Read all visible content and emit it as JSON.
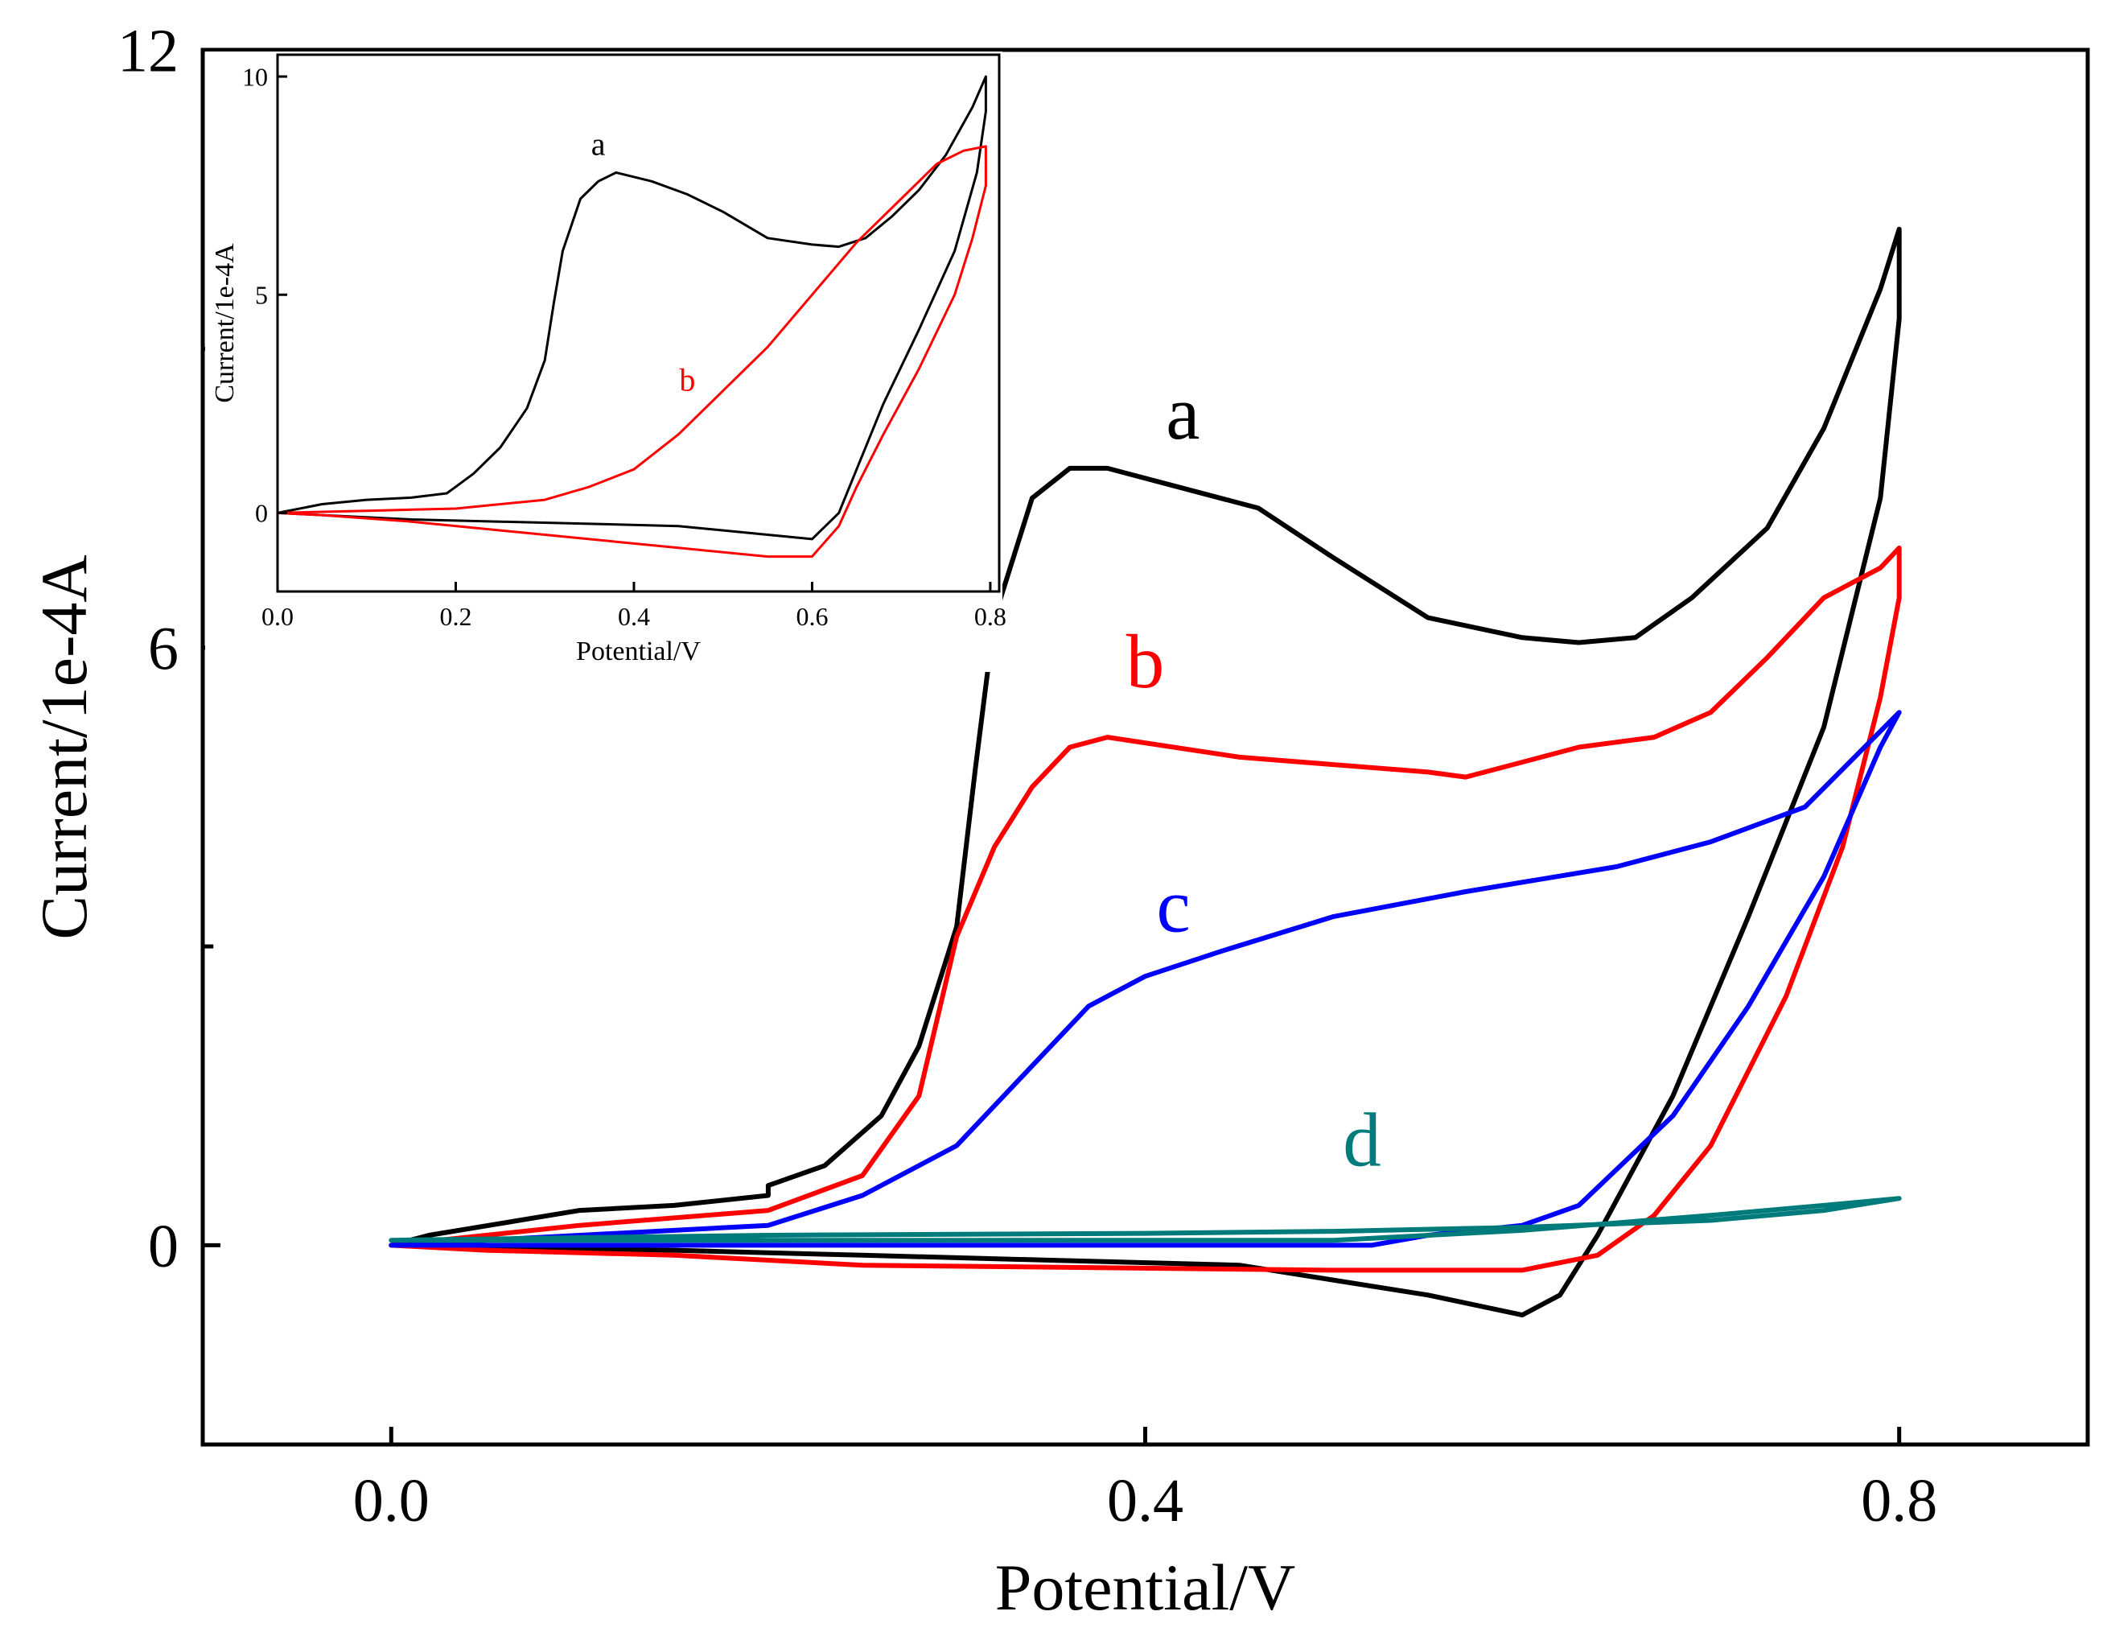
{
  "chart_data": [
    {
      "id": "main",
      "type": "line",
      "title": "",
      "xlabel": "Potential/V",
      "ylabel": "Current/1e-4A",
      "xlim": [
        -0.1,
        0.9
      ],
      "ylim": [
        -2,
        12
      ],
      "xticks": [
        0.0,
        0.4,
        0.8
      ],
      "xtick_labels": [
        "0.0",
        "0.4",
        "0.8"
      ],
      "yticks": [
        0,
        6,
        12
      ],
      "ytick_labels": [
        "0",
        "6",
        "12"
      ],
      "y_minor_ticks": [
        3,
        9
      ],
      "grid": false,
      "series": [
        {
          "name": "a",
          "color": "#000000",
          "label_at": [
            0.42,
            8.1
          ],
          "x": [
            0.0,
            0.02,
            0.1,
            0.15,
            0.2,
            0.2,
            0.23,
            0.26,
            0.28,
            0.3,
            0.31,
            0.32,
            0.34,
            0.36,
            0.38,
            0.42,
            0.46,
            0.5,
            0.55,
            0.6,
            0.63,
            0.66,
            0.69,
            0.73,
            0.76,
            0.79,
            0.8,
            0.8,
            0.79,
            0.76,
            0.72,
            0.68,
            0.64,
            0.62,
            0.6,
            0.55,
            0.45,
            0.35,
            0.25,
            0.15,
            0.05,
            0.0
          ],
          "y": [
            0.0,
            0.1,
            0.35,
            0.4,
            0.5,
            0.6,
            0.8,
            1.3,
            2.0,
            3.2,
            4.8,
            6.3,
            7.5,
            7.8,
            7.8,
            7.6,
            7.4,
            6.9,
            6.3,
            6.1,
            6.05,
            6.1,
            6.5,
            7.2,
            8.2,
            9.6,
            10.2,
            9.3,
            7.5,
            5.2,
            3.3,
            1.5,
            0.1,
            -0.5,
            -0.7,
            -0.5,
            -0.2,
            -0.15,
            -0.1,
            -0.05,
            -0.02,
            0.0
          ]
        },
        {
          "name": "b",
          "color": "#ff0000",
          "label_at": [
            0.4,
            5.6
          ],
          "x": [
            0.0,
            0.1,
            0.2,
            0.25,
            0.28,
            0.3,
            0.32,
            0.34,
            0.36,
            0.38,
            0.45,
            0.55,
            0.57,
            0.6,
            0.63,
            0.67,
            0.7,
            0.73,
            0.76,
            0.79,
            0.8,
            0.8,
            0.79,
            0.77,
            0.74,
            0.7,
            0.67,
            0.64,
            0.6,
            0.5,
            0.25,
            0.15,
            0.05,
            0.0
          ],
          "y": [
            0.0,
            0.2,
            0.35,
            0.7,
            1.5,
            3.1,
            4.0,
            4.6,
            5.0,
            5.1,
            4.9,
            4.75,
            4.7,
            4.85,
            5.0,
            5.1,
            5.35,
            5.9,
            6.5,
            6.8,
            7.0,
            6.5,
            5.5,
            4.0,
            2.5,
            1.0,
            0.3,
            -0.1,
            -0.25,
            -0.25,
            -0.2,
            -0.1,
            -0.05,
            0.0
          ]
        },
        {
          "name": "c",
          "color": "#0000ff",
          "label_at": [
            0.415,
            3.15
          ],
          "x": [
            0.0,
            0.1,
            0.2,
            0.25,
            0.3,
            0.34,
            0.37,
            0.4,
            0.44,
            0.5,
            0.57,
            0.65,
            0.7,
            0.75,
            0.8,
            0.79,
            0.76,
            0.72,
            0.68,
            0.63,
            0.6,
            0.55,
            0.52,
            0.4,
            0.2,
            0.0
          ],
          "y": [
            0.0,
            0.1,
            0.2,
            0.5,
            1.0,
            1.8,
            2.4,
            2.7,
            2.95,
            3.3,
            3.55,
            3.8,
            4.05,
            4.4,
            5.35,
            5.0,
            3.7,
            2.4,
            1.3,
            0.4,
            0.2,
            0.1,
            0.0,
            0.0,
            0.0,
            0.0
          ]
        },
        {
          "name": "d",
          "color": "#007b7b",
          "label_at": [
            0.515,
            0.8
          ],
          "x": [
            0.0,
            0.2,
            0.4,
            0.5,
            0.6,
            0.7,
            0.76,
            0.8,
            0.76,
            0.7,
            0.6,
            0.5,
            0.4,
            0.2,
            0.0
          ],
          "y": [
            0.05,
            0.1,
            0.12,
            0.14,
            0.18,
            0.25,
            0.35,
            0.47,
            0.4,
            0.3,
            0.15,
            0.05,
            0.05,
            0.05,
            0.05
          ]
        }
      ]
    },
    {
      "id": "inset",
      "type": "line",
      "title": "",
      "xlabel": "Potential/V",
      "ylabel": "Current/1e-4A",
      "xlim": [
        0.0,
        0.81
      ],
      "ylim": [
        -1.8,
        10.5
      ],
      "xticks": [
        0.0,
        0.2,
        0.4,
        0.6,
        0.8
      ],
      "xtick_labels": [
        "0.0",
        "0.2",
        "0.4",
        "0.6",
        "0.8"
      ],
      "yticks": [
        0,
        5,
        10
      ],
      "ytick_labels": [
        "0",
        "5",
        "10"
      ],
      "grid": false,
      "series": [
        {
          "name": "a",
          "color": "#000000",
          "label_at": [
            0.36,
            8.2
          ],
          "x": [
            0.0,
            0.05,
            0.1,
            0.15,
            0.19,
            0.2,
            0.22,
            0.25,
            0.28,
            0.3,
            0.31,
            0.32,
            0.34,
            0.36,
            0.38,
            0.42,
            0.46,
            0.5,
            0.55,
            0.6,
            0.63,
            0.66,
            0.69,
            0.72,
            0.75,
            0.78,
            0.795,
            0.795,
            0.785,
            0.76,
            0.72,
            0.68,
            0.65,
            0.63,
            0.6,
            0.55,
            0.45,
            0.35,
            0.25,
            0.15,
            0.05,
            0.0
          ],
          "y": [
            0.0,
            0.2,
            0.3,
            0.35,
            0.45,
            0.6,
            0.9,
            1.5,
            2.4,
            3.5,
            4.8,
            6.0,
            7.2,
            7.6,
            7.8,
            7.6,
            7.3,
            6.9,
            6.3,
            6.15,
            6.1,
            6.3,
            6.8,
            7.4,
            8.2,
            9.3,
            10.0,
            9.2,
            7.8,
            6.0,
            4.2,
            2.5,
            1.0,
            0.0,
            -0.6,
            -0.5,
            -0.3,
            -0.25,
            -0.2,
            -0.15,
            -0.05,
            0.0
          ]
        },
        {
          "name": "b",
          "color": "#ff0000",
          "label_at": [
            0.46,
            2.8
          ],
          "x": [
            0.0,
            0.1,
            0.2,
            0.3,
            0.35,
            0.4,
            0.45,
            0.5,
            0.55,
            0.6,
            0.65,
            0.7,
            0.74,
            0.77,
            0.795,
            0.795,
            0.78,
            0.76,
            0.72,
            0.68,
            0.65,
            0.63,
            0.6,
            0.55,
            0.45,
            0.3,
            0.15,
            0.05,
            0.0
          ],
          "y": [
            0.0,
            0.05,
            0.1,
            0.3,
            0.6,
            1.0,
            1.8,
            2.8,
            3.8,
            5.0,
            6.2,
            7.2,
            8.0,
            8.3,
            8.4,
            7.5,
            6.3,
            5.0,
            3.3,
            1.8,
            0.6,
            -0.3,
            -1.0,
            -1.0,
            -0.8,
            -0.5,
            -0.2,
            -0.05,
            0.0
          ]
        }
      ]
    }
  ]
}
